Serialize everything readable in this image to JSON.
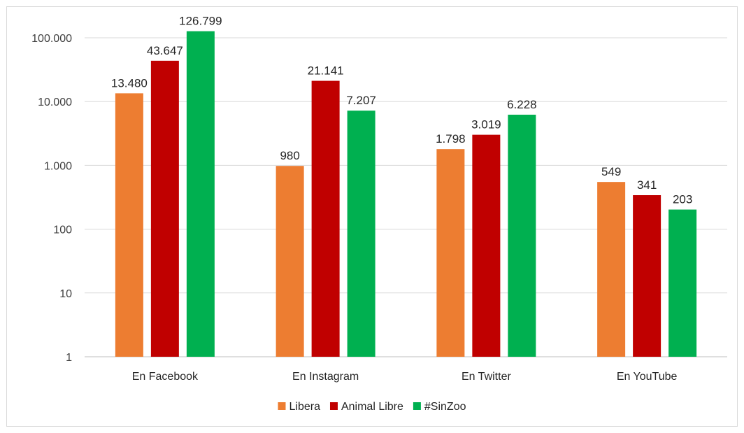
{
  "chart_data": {
    "type": "bar",
    "scale": "log",
    "ylim": [
      1,
      100000
    ],
    "ticks": [
      {
        "value": 1,
        "label": "1"
      },
      {
        "value": 10,
        "label": "10"
      },
      {
        "value": 100,
        "label": "100"
      },
      {
        "value": 1000,
        "label": "1.000"
      },
      {
        "value": 10000,
        "label": "10.000"
      },
      {
        "value": 100000,
        "label": "100.000"
      }
    ],
    "grid": true,
    "legend_position": "bottom",
    "categories": [
      "En Facebook",
      "En Instagram",
      "En Twitter",
      "En YouTube"
    ],
    "series": [
      {
        "name": "Libera",
        "color": "#ed7d31",
        "values": [
          13480,
          980,
          1798,
          549
        ],
        "labels": [
          "13.480",
          "980",
          "1.798",
          "549"
        ]
      },
      {
        "name": "Animal Libre",
        "color": "#c00000",
        "values": [
          43647,
          21141,
          3019,
          341
        ],
        "labels": [
          "43.647",
          "21.141",
          "3.019",
          "341"
        ]
      },
      {
        "name": "#SinZoo",
        "color": "#00b050",
        "values": [
          126799,
          7207,
          6228,
          203
        ],
        "labels": [
          "126.799",
          "7.207",
          "6.228",
          "203"
        ]
      }
    ]
  }
}
